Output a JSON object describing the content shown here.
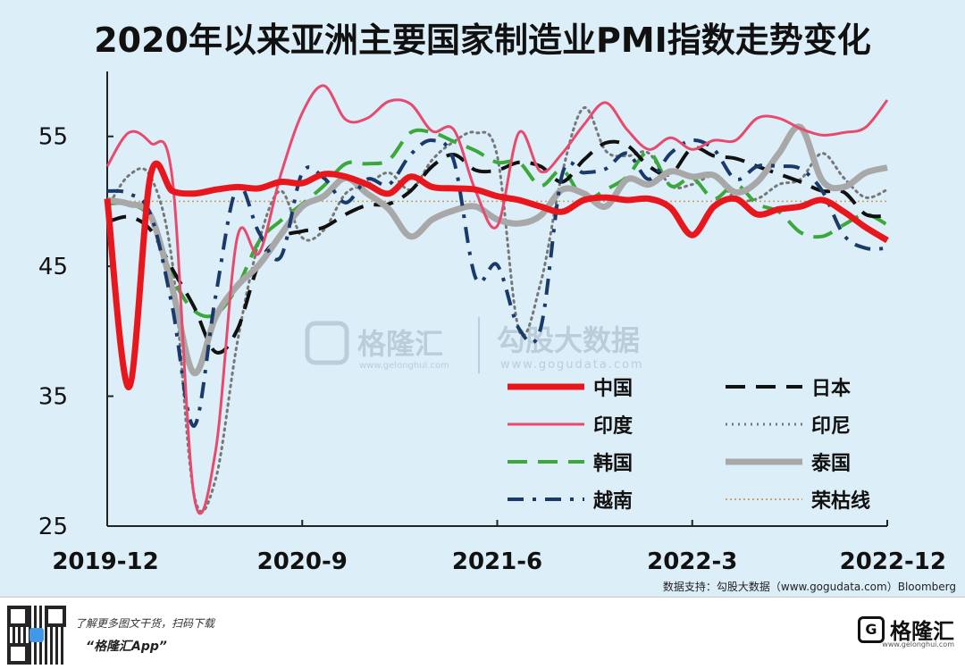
{
  "title": "2020年以来亚洲主要国家制造业PMI指数走势变化",
  "source_note": "数据支持：勾股大数据（www.gogudata.com）Bloomberg",
  "watermark": {
    "brand_cn": "格隆汇",
    "brand_url": "www.gelonghui.com",
    "data_cn": "勾股大数据",
    "data_url": "www.gogudata.com"
  },
  "footer": {
    "line1": "了解更多图文干货，扫码下载",
    "line2": "“格隆汇App”",
    "brand_name": "格隆汇",
    "brand_url": "www.gelonghui.com"
  },
  "chart_data": {
    "type": "line",
    "title": "2020年以来亚洲主要国家制造业PMI指数走势变化",
    "xlabel": "",
    "ylabel": "",
    "ylim": [
      25,
      60
    ],
    "yticks": [
      25,
      35,
      45,
      55
    ],
    "xlim": [
      0,
      36
    ],
    "xticks": [
      {
        "x": 0,
        "label": "2019-12"
      },
      {
        "x": 9,
        "label": "2020-9"
      },
      {
        "x": 18,
        "label": "2021-6"
      },
      {
        "x": 27,
        "label": "2022-3"
      },
      {
        "x": 36,
        "label": "2022-12"
      }
    ],
    "grid": false,
    "legend_position": "bottom-right",
    "series": [
      {
        "name": "中国",
        "color": "#e8161d",
        "style": "solid-thick",
        "values": [
          50.2,
          35.7,
          52.0,
          50.8,
          50.6,
          50.9,
          51.1,
          51.0,
          51.5,
          51.4,
          52.1,
          51.9,
          51.3,
          50.6,
          51.9,
          51.1,
          51.0,
          50.9,
          50.4,
          50.1,
          49.6,
          49.2,
          50.1,
          50.3,
          50.1,
          50.2,
          49.5,
          47.4,
          49.6,
          50.2,
          49.0,
          49.4,
          49.6,
          50.1,
          49.2,
          48.0,
          47.0
        ]
      },
      {
        "name": "日本",
        "color": "#111111",
        "style": "dash",
        "values": [
          48.4,
          48.8,
          47.8,
          44.8,
          41.9,
          38.4,
          40.1,
          45.2,
          47.2,
          47.7,
          48.0,
          49.0,
          49.7,
          49.8,
          50.8,
          52.7,
          53.6,
          52.4,
          52.4,
          53.0,
          52.7,
          51.5,
          53.2,
          54.5,
          54.3,
          52.7,
          52.1,
          54.1,
          53.5,
          53.3,
          52.7,
          52.1,
          51.5,
          50.8,
          50.7,
          49.0,
          48.9
        ]
      },
      {
        "name": "印度",
        "color": "#e84a6e",
        "style": "solid",
        "values": [
          52.7,
          55.3,
          54.5,
          51.8,
          27.4,
          30.8,
          47.2,
          46.0,
          52.0,
          56.8,
          58.9,
          56.3,
          56.4,
          57.7,
          57.5,
          55.4,
          55.5,
          50.8,
          48.1,
          55.3,
          52.3,
          53.7,
          55.9,
          57.6,
          55.5,
          54.0,
          54.9,
          54.0,
          54.7,
          54.7,
          56.4,
          56.4,
          55.6,
          55.1,
          55.3,
          55.7,
          57.8
        ]
      },
      {
        "name": "印尼",
        "color": "#777777",
        "style": "dot",
        "values": [
          49.5,
          52.0,
          51.9,
          45.3,
          27.5,
          28.6,
          39.1,
          46.9,
          50.8,
          47.2,
          47.8,
          50.6,
          51.3,
          52.2,
          50.9,
          53.2,
          54.6,
          55.3,
          53.5,
          40.1,
          43.7,
          52.2,
          57.2,
          53.9,
          53.5,
          53.7,
          51.2,
          51.3,
          51.9,
          50.2,
          50.2,
          51.3,
          51.7,
          53.7,
          51.8,
          50.3,
          50.9
        ]
      },
      {
        "name": "韩国",
        "color": "#3aa83a",
        "style": "dash",
        "values": [
          49.8,
          49.8,
          48.7,
          44.2,
          41.6,
          41.3,
          43.4,
          46.9,
          48.5,
          49.8,
          51.2,
          52.9,
          52.9,
          53.2,
          55.3,
          55.3,
          54.6,
          53.9,
          53.0,
          53.0,
          51.2,
          52.4,
          50.2,
          50.9,
          51.9,
          53.8,
          51.2,
          51.8,
          50.2,
          51.3,
          49.8,
          49.2,
          47.6,
          47.3,
          48.2,
          49.0,
          48.2
        ]
      },
      {
        "name": "泰国",
        "color": "#a8a8a8",
        "style": "solid-thick",
        "values": [
          50.1,
          49.8,
          48.9,
          43.3,
          36.8,
          41.1,
          43.5,
          45.1,
          47.4,
          49.6,
          50.4,
          51.8,
          50.6,
          49.4,
          47.3,
          48.6,
          49.3,
          49.6,
          48.6,
          48.3,
          48.9,
          50.9,
          50.6,
          49.6,
          51.7,
          51.3,
          52.3,
          51.9,
          52.0,
          50.7,
          51.5,
          53.7,
          55.7,
          51.6,
          51.1,
          52.2,
          52.6
        ]
      },
      {
        "name": "越南",
        "color": "#1a3a6b",
        "style": "dashdot",
        "values": [
          50.8,
          50.6,
          49.0,
          41.9,
          32.7,
          42.7,
          51.1,
          47.6,
          45.7,
          52.2,
          51.8,
          49.9,
          51.7,
          51.3,
          53.6,
          54.7,
          53.1,
          44.1,
          45.1,
          40.2,
          40.2,
          52.1,
          52.2,
          52.5,
          53.7,
          51.7,
          53.7,
          54.7,
          54.0,
          51.7,
          52.7,
          52.7,
          52.5,
          50.8,
          47.4,
          46.4,
          46.4
        ]
      },
      {
        "name": "荣枯线",
        "color": "#c8a070",
        "style": "dotted-thin",
        "values": [
          50,
          50,
          50,
          50,
          50,
          50,
          50,
          50,
          50,
          50,
          50,
          50,
          50,
          50,
          50,
          50,
          50,
          50,
          50,
          50,
          50,
          50,
          50,
          50,
          50,
          50,
          50,
          50,
          50,
          50,
          50,
          50,
          50,
          50,
          50,
          50,
          50
        ]
      }
    ]
  }
}
